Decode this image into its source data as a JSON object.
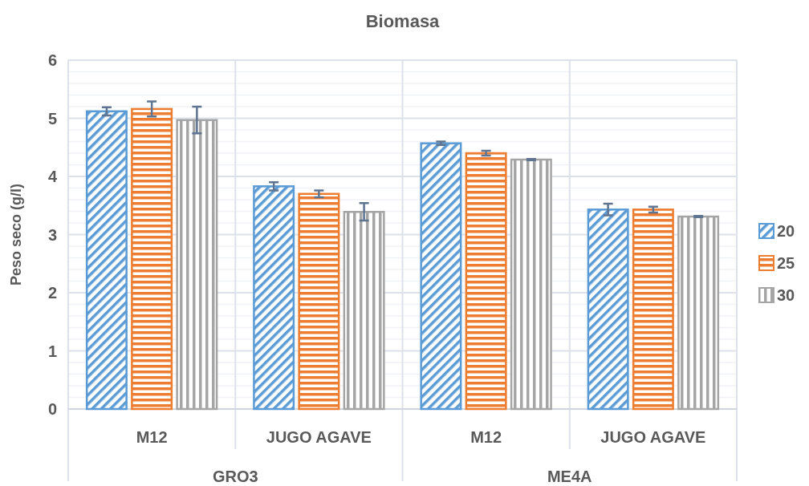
{
  "chart_data": {
    "type": "bar",
    "title": "Biomasa",
    "ylabel": "Peso seco (g/l)",
    "categories": [
      "M12",
      "JUGO AGAVE",
      "M12",
      "JUGO AGAVE"
    ],
    "annotations": [
      "GRO3",
      "ME4A"
    ],
    "series": [
      {
        "name": "20",
        "color": "#5b9bd5",
        "values": [
          5.12,
          3.83,
          4.57,
          3.43
        ],
        "errors": [
          0.07,
          0.07,
          0.03,
          0.1
        ]
      },
      {
        "name": "25",
        "color": "#ed7d31",
        "values": [
          5.16,
          3.7,
          4.4,
          3.43
        ],
        "errors": [
          0.13,
          0.06,
          0.04,
          0.05
        ]
      },
      {
        "name": "30",
        "color": "#a5a5a5",
        "values": [
          4.97,
          3.39,
          4.29,
          3.31
        ],
        "errors": [
          0.23,
          0.15,
          0.01,
          0.01
        ]
      }
    ],
    "ylim": [
      0,
      6
    ],
    "yticks": [
      0,
      {
        "value": 0.2,
        "label": null
      },
      {
        "value": 0.4,
        "label": null
      },
      {
        "value": 0.6,
        "label": null
      },
      {
        "value": 0.8,
        "label": null
      },
      1,
      {
        "value": 1.2,
        "label": null
      },
      {
        "value": 1.4,
        "label": null
      },
      {
        "value": 1.6,
        "label": null
      },
      {
        "value": 1.8,
        "label": null
      },
      2,
      {
        "value": 2.2,
        "label": null
      },
      {
        "value": 2.4,
        "label": null
      },
      {
        "value": 2.6,
        "label": null
      },
      {
        "value": 2.8,
        "label": null
      },
      3,
      {
        "value": 3.2,
        "label": null
      },
      {
        "value": 3.4,
        "label": null
      },
      {
        "value": 3.6,
        "label": null
      },
      {
        "value": 3.8,
        "label": null
      },
      4,
      {
        "value": 4.2,
        "label": null
      },
      {
        "value": 4.4,
        "label": null
      },
      {
        "value": 4.6,
        "label": null
      },
      {
        "value": 4.8,
        "label": null
      },
      5,
      {
        "value": 5.2,
        "label": null
      },
      {
        "value": 5.4,
        "label": null
      },
      {
        "value": 5.6,
        "label": null
      },
      {
        "value": 5.8,
        "label": null
      },
      6
    ],
    "grid": "y",
    "legend": "right"
  }
}
